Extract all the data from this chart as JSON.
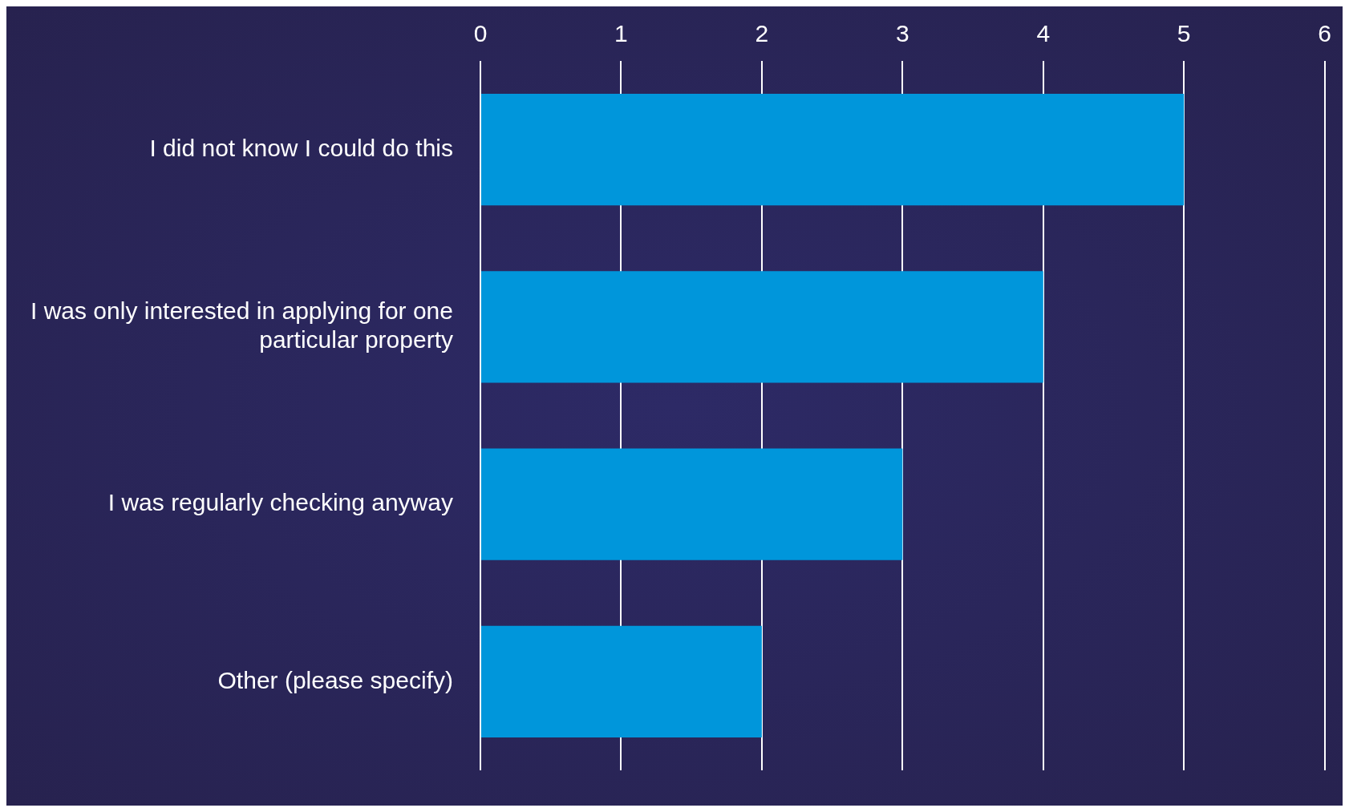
{
  "chart_data": {
    "type": "bar",
    "orientation": "horizontal",
    "categories": [
      "I did not know I could do this",
      "I was only interested in applying for one particular property",
      "I was regularly checking anyway",
      "Other (please specify)"
    ],
    "values": [
      5,
      4,
      3,
      2
    ],
    "color": "#0096db",
    "xlim": [
      0,
      6
    ],
    "xticks": [
      0,
      1,
      2,
      3,
      4,
      5,
      6
    ],
    "grid": "x",
    "legend": false
  }
}
